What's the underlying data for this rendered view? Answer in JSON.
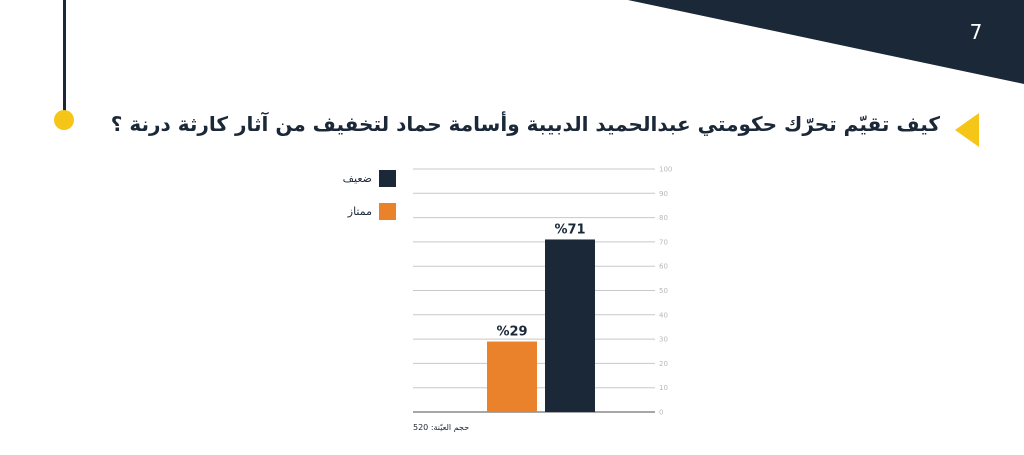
{
  "slide": {
    "page_number": "7",
    "question": "كيف تقيّم تحرّك حكومتي عبدالحميد الدبيبة وأسامة حماد لتخفيف من آثار كارثة درنة ؟",
    "sample_note": "حجم العيّنة: 520"
  },
  "colors": {
    "navy": "#1b2838",
    "accent_yellow": "#f5c518",
    "orange": "#e9822a",
    "grid": "#c8c8c8"
  },
  "chart_data": {
    "type": "bar",
    "categories": [
      "ممتاز",
      "ضعيف"
    ],
    "values": [
      29,
      71
    ],
    "data_labels": [
      "%29",
      "%71"
    ],
    "colors": [
      "#e9822a",
      "#1b2838"
    ],
    "legend": [
      {
        "name": "ضعيف",
        "color": "#1b2838"
      },
      {
        "name": "ممتاز",
        "color": "#e9822a"
      }
    ],
    "legend_position": "top-left",
    "ylim": [
      0,
      100
    ],
    "yticks": [
      0,
      10,
      20,
      30,
      40,
      50,
      60,
      70,
      80,
      90,
      100
    ],
    "y_axis_side": "right",
    "grid": true,
    "title": "",
    "xlabel": "",
    "ylabel": ""
  }
}
